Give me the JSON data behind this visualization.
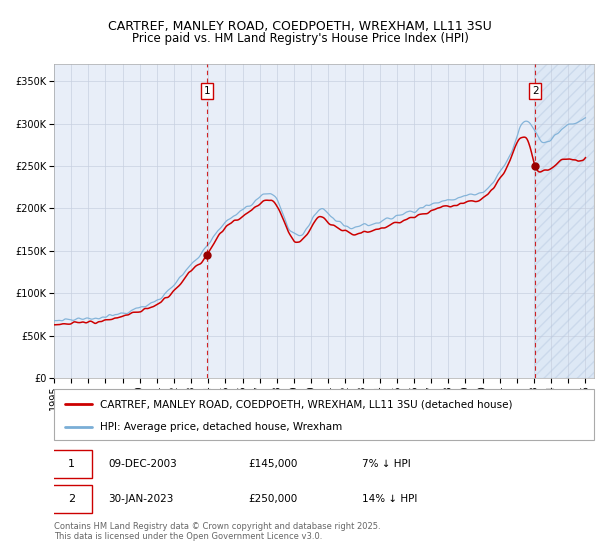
{
  "title": "CARTREF, MANLEY ROAD, COEDPOETH, WREXHAM, LL11 3SU",
  "subtitle": "Price paid vs. HM Land Registry's House Price Index (HPI)",
  "legend_entry1": "CARTREF, MANLEY ROAD, COEDPOETH, WREXHAM, LL11 3SU (detached house)",
  "legend_entry2": "HPI: Average price, detached house, Wrexham",
  "annotation1_date": "09-DEC-2003",
  "annotation1_price": "£145,000",
  "annotation1_hpi": "7% ↓ HPI",
  "annotation2_date": "30-JAN-2023",
  "annotation2_price": "£250,000",
  "annotation2_hpi": "14% ↓ HPI",
  "footer": "Contains HM Land Registry data © Crown copyright and database right 2025.\nThis data is licensed under the Open Government Licence v3.0.",
  "bg_color": "#ffffff",
  "plot_bg_color": "#e8eef8",
  "line1_color": "#cc0000",
  "line2_color": "#7aaed6",
  "vline_color": "#cc0000",
  "grid_color": "#c8d0e0",
  "shade_color": "#dde8f5",
  "xlim_start": 1995.0,
  "xlim_end": 2026.5,
  "ylim_bottom": 0,
  "ylim_top": 370000,
  "yticks": [
    0,
    50000,
    100000,
    150000,
    200000,
    250000,
    300000,
    350000
  ],
  "ytick_labels": [
    "£0",
    "£50K",
    "£100K",
    "£150K",
    "£200K",
    "£250K",
    "£300K",
    "£350K"
  ],
  "xticks": [
    1995,
    1996,
    1997,
    1998,
    1999,
    2000,
    2001,
    2002,
    2003,
    2004,
    2005,
    2006,
    2007,
    2008,
    2009,
    2010,
    2011,
    2012,
    2013,
    2014,
    2015,
    2016,
    2017,
    2018,
    2019,
    2020,
    2021,
    2022,
    2023,
    2024,
    2025,
    2026
  ],
  "sale1_x": 2003.92,
  "sale1_y": 145000,
  "sale2_x": 2023.08,
  "sale2_y": 250000,
  "shade_x1": 2023.08,
  "shade_x2": 2026.5,
  "title_fontsize": 9,
  "subtitle_fontsize": 8.5,
  "tick_fontsize": 7,
  "legend_fontsize": 7.5,
  "annot_fontsize": 7.5,
  "footer_fontsize": 6
}
